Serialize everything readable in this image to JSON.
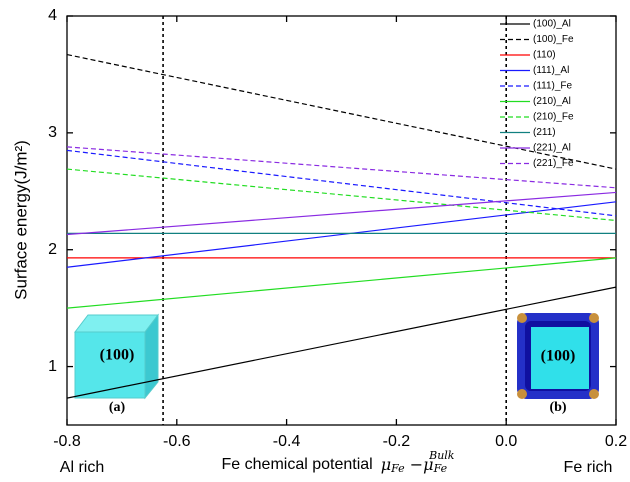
{
  "chart_data": {
    "type": "line",
    "ylabel": "Surface energy(J/m²)",
    "xlabel": [
      "Fe chemical potential",
      "μ",
      "Fe",
      " −μ",
      "Fe",
      "Bulk"
    ],
    "x": [
      -0.8,
      0.2
    ],
    "xlim": [
      -0.8,
      0.2
    ],
    "ylim": [
      0.5,
      4
    ],
    "xticks": [
      -0.8,
      -0.6,
      -0.4,
      -0.2,
      {
        "value": 0,
        "label": "0.0"
      },
      0.2
    ],
    "yticks": [
      1,
      2,
      3,
      4
    ],
    "vlines": [
      -0.625,
      0
    ],
    "legend": "upper right",
    "series": [
      {
        "name": "(100)_Al",
        "color": "#000000",
        "dashed": false,
        "values": [
          0.73,
          1.68
        ]
      },
      {
        "name": "(100)_Fe",
        "color": "#000000",
        "dashed": true,
        "values": [
          3.67,
          2.69
        ]
      },
      {
        "name": "(110)",
        "color": "#ff0000",
        "dashed": false,
        "values": [
          1.93,
          1.93
        ]
      },
      {
        "name": "(111)_Al",
        "color": "#1a1aff",
        "dashed": false,
        "values": [
          1.85,
          2.41
        ]
      },
      {
        "name": "(111)_Fe",
        "color": "#1a1aff",
        "dashed": true,
        "values": [
          2.85,
          2.29
        ]
      },
      {
        "name": "(210)_Al",
        "color": "#22dd22",
        "dashed": false,
        "values": [
          1.5,
          1.93
        ]
      },
      {
        "name": "(210)_Fe",
        "color": "#22dd22",
        "dashed": true,
        "values": [
          2.69,
          2.25
        ]
      },
      {
        "name": "(211)",
        "color": "#118080",
        "dashed": false,
        "values": [
          2.14,
          2.14
        ]
      },
      {
        "name": "(221)_Al",
        "color": "#8a2be2",
        "dashed": false,
        "values": [
          2.13,
          2.49
        ]
      },
      {
        "name": "(221)_Fe",
        "color": "#8a2be2",
        "dashed": true,
        "values": [
          2.88,
          2.53
        ]
      }
    ],
    "annotations": [
      "Al rich",
      "Fe rich",
      "(100)",
      "(a)",
      "(100)",
      "(b)"
    ]
  }
}
